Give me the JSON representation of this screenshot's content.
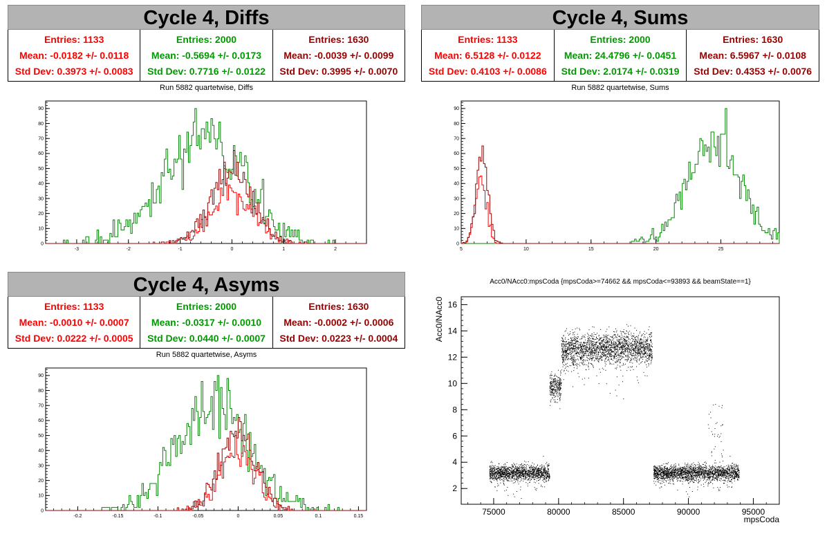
{
  "panels": {
    "diffs": {
      "title": "Cycle 4, Diffs",
      "subtitle": "Run 5882 quartetwise, Diffs",
      "stats": [
        {
          "entries": "Entries: 1133",
          "mean": "Mean: -0.0182 +/- 0.0118",
          "std": "Std Dev: 0.3973 +/- 0.0083"
        },
        {
          "entries": "Entries: 2000",
          "mean": "Mean: -0.5694 +/- 0.0173",
          "std": "Std Dev: 0.7716 +/- 0.0122"
        },
        {
          "entries": "Entries: 1630",
          "mean": "Mean: -0.0039 +/- 0.0099",
          "std": "Std Dev: 0.3995 +/- 0.0070"
        }
      ]
    },
    "sums": {
      "title": "Cycle 4, Sums",
      "subtitle": "Run 5882 quartetwise, Sums",
      "stats": [
        {
          "entries": "Entries: 1133",
          "mean": "Mean: 6.5128 +/- 0.0122",
          "std": "Std Dev: 0.4103 +/- 0.0086"
        },
        {
          "entries": "Entries: 2000",
          "mean": "Mean: 24.4796 +/- 0.0451",
          "std": "Std Dev: 2.0174 +/- 0.0319"
        },
        {
          "entries": "Entries: 1630",
          "mean": "Mean: 6.5967 +/- 0.0108",
          "std": "Std Dev: 0.4353 +/- 0.0076"
        }
      ]
    },
    "asyms": {
      "title": "Cycle 4, Asyms",
      "subtitle": "Run 5882 quartetwise, Asyms",
      "stats": [
        {
          "entries": "Entries: 1133",
          "mean": "Mean: -0.0010 +/- 0.0007",
          "std": "Std Dev: 0.0222 +/- 0.0005"
        },
        {
          "entries": "Entries: 2000",
          "mean": "Mean: -0.0317 +/- 0.0010",
          "std": "Std Dev: 0.0440 +/- 0.0007"
        },
        {
          "entries": "Entries: 1630",
          "mean": "Mean: -0.0002 +/- 0.0006",
          "std": "Std Dev: 0.0223 +/- 0.0004"
        }
      ]
    },
    "scatter": {
      "title": "Acc0/NAcc0:mpsCoda {mpsCoda>=74662 && mpsCoda<=93893 && beamState==1}",
      "xlabel": "mpsCoda",
      "ylabel": "Acc0/NAcc0"
    }
  },
  "chart_data": [
    {
      "type": "bar",
      "title": "Run 5882 quartetwise, Diffs",
      "xlim": [
        -3.6,
        2.6
      ],
      "ylim": [
        0,
        95
      ],
      "xticks": [
        -3,
        -2,
        -1,
        0,
        1,
        2
      ],
      "yticks": [
        0,
        10,
        20,
        30,
        40,
        50,
        60,
        70,
        80,
        90
      ],
      "series": [
        {
          "color": "#008800",
          "entries": 2000,
          "mean": -0.5694,
          "std": 0.7716,
          "peak": 90
        },
        {
          "color": "#ff0000",
          "entries": 1133,
          "mean": -0.0182,
          "std": 0.3973,
          "peak": 50
        },
        {
          "color": "#990000",
          "entries": 1630,
          "mean": -0.0039,
          "std": 0.3995,
          "peak": 62
        }
      ]
    },
    {
      "type": "bar",
      "title": "Run 5882 quartetwise, Sums",
      "xlim": [
        5,
        29.5
      ],
      "ylim": [
        0,
        95
      ],
      "xticks": [
        5,
        10,
        15,
        20,
        25
      ],
      "yticks": [
        0,
        10,
        20,
        30,
        40,
        50,
        60,
        70,
        80,
        90
      ],
      "series": [
        {
          "color": "#008800",
          "entries": 2000,
          "mean": 24.4796,
          "std": 2.0174,
          "peak": 90
        },
        {
          "color": "#ff0000",
          "entries": 1133,
          "mean": 6.5128,
          "std": 0.4103,
          "peak": 45
        },
        {
          "color": "#990000",
          "entries": 1630,
          "mean": 6.5967,
          "std": 0.4353,
          "peak": 65
        }
      ]
    },
    {
      "type": "bar",
      "title": "Run 5882 quartetwise, Asyms",
      "xlim": [
        -0.24,
        0.16
      ],
      "ylim": [
        0,
        95
      ],
      "xticks": [
        -0.2,
        -0.15,
        -0.1,
        -0.05,
        0,
        0.05,
        0.1,
        0.15
      ],
      "yticks": [
        0,
        10,
        20,
        30,
        40,
        50,
        60,
        70,
        80,
        90
      ],
      "series": [
        {
          "color": "#008800",
          "entries": 2000,
          "mean": -0.0317,
          "std": 0.044,
          "peak": 90
        },
        {
          "color": "#ff0000",
          "entries": 1133,
          "mean": -0.001,
          "std": 0.0222,
          "peak": 50
        },
        {
          "color": "#990000",
          "entries": 1630,
          "mean": -0.0002,
          "std": 0.0223,
          "peak": 62
        }
      ]
    },
    {
      "type": "scatter",
      "title": "Acc0/NAcc0:mpsCoda {mpsCoda>=74662 && mpsCoda<=93893 && beamState==1}",
      "xlabel": "mpsCoda",
      "ylabel": "Acc0/NAcc0",
      "xlim": [
        72500,
        97000
      ],
      "ylim": [
        0.8,
        16.6
      ],
      "xticks": [
        75000,
        80000,
        85000,
        90000,
        95000
      ],
      "yticks": [
        2,
        4,
        6,
        8,
        10,
        12,
        14,
        16
      ],
      "clusters": [
        {
          "x": [
            74662,
            79300
          ],
          "y_center": 3.2,
          "y_spread": 0.5
        },
        {
          "x": [
            79300,
            80200
          ],
          "y_center": 9.8,
          "y_spread": 0.8
        },
        {
          "x": [
            80200,
            82500
          ],
          "y_center": 12.6,
          "y_spread": 1.0
        },
        {
          "x": [
            82500,
            87200
          ],
          "y_center": 12.7,
          "y_spread": 1.0
        },
        {
          "x": [
            87300,
            93893
          ],
          "y_center": 3.2,
          "y_spread": 0.5
        }
      ]
    }
  ]
}
